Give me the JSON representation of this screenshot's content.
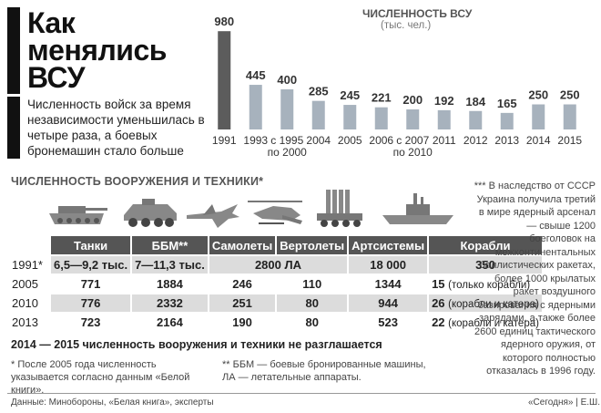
{
  "header": {
    "title_lines": [
      "Как",
      "менялись",
      "ВСУ"
    ],
    "lead": "Численность войск за время независимости уменьшилась в четыре раза, а боевых бронемашин стало больше"
  },
  "chart_data": {
    "type": "bar",
    "title": "ЧИСЛЕННОСТЬ ВСУ",
    "subtitle": "(тыс. чел.)",
    "categories": [
      "1991",
      "1993",
      "с 1995 по 2000",
      "2004",
      "2005",
      "2006",
      "с 2007 по 2010",
      "2011",
      "2012",
      "2013",
      "2014",
      "2015"
    ],
    "category_lines": [
      [
        "1991"
      ],
      [
        "1993"
      ],
      [
        "с 1995",
        "по 2000"
      ],
      [
        "2004"
      ],
      [
        "2005"
      ],
      [
        "2006"
      ],
      [
        "с 2007",
        "по 2010"
      ],
      [
        "2011"
      ],
      [
        "2012"
      ],
      [
        "2013"
      ],
      [
        "2014"
      ],
      [
        "2015"
      ]
    ],
    "values": [
      980,
      445,
      400,
      285,
      245,
      221,
      200,
      192,
      184,
      165,
      250,
      250
    ],
    "ylim": [
      0,
      1000
    ],
    "colors": {
      "first": "#5c5c5c",
      "rest": "#a7b2bd"
    }
  },
  "weapons": {
    "title": "ЧИСЛЕННОСТЬ ВООРУЖЕНИЯ И ТЕХНИКИ*",
    "icons": [
      "tank-icon",
      "apc-icon",
      "jet-icon",
      "helicopter-icon",
      "artillery-icon",
      "ship-icon"
    ],
    "headers": [
      "Танки",
      "ББМ**",
      "Самолеты",
      "Вертолеты",
      "Артсистемы",
      "Корабли"
    ],
    "rows": [
      {
        "year": "1991*",
        "tanks": "6,5—9,2 тыс.",
        "bbm": "7—11,3 тыс.",
        "air": "2800 ЛА",
        "art": "18 000",
        "ships": "350",
        "ships_note": ""
      },
      {
        "year": "2005",
        "tanks": "771",
        "bbm": "1884",
        "planes": "246",
        "heli": "110",
        "art": "1344",
        "ships": "15",
        "ships_note": "(только корабли)"
      },
      {
        "year": "2010",
        "tanks": "776",
        "bbm": "2332",
        "planes": "251",
        "heli": "80",
        "art": "944",
        "ships": "26",
        "ships_note": "(корабли и катера)"
      },
      {
        "year": "2013",
        "tanks": "723",
        "bbm": "2164",
        "planes": "190",
        "heli": "80",
        "art": "523",
        "ships": "22",
        "ships_note": "(корабли и катера)"
      }
    ],
    "note": "2014 — 2015 численность вооружения и техники не разглашается"
  },
  "footnotes": {
    "f1": "* После 2005 года численность указывается согласно данным «Белой книги».",
    "f2": "** ББМ — боевые бронированные машины, ЛА — летательные аппараты.",
    "f3": "*** В наследство от СССР Украина получила третий в мире ядерный арсенал — свыше 1200 боеголовок на межконтинентальных баллистических ракетах, более 1000 крылатых ракет воздушного базирования с ядерными зарядами, а также более 2600 единиц тактического ядерного оружия, от которого полностью отказалась в 1996 году."
  },
  "source": "Данные: Минобороны, «Белая книга», эксперты",
  "credit": "«Сегодня» | Е.Ш."
}
